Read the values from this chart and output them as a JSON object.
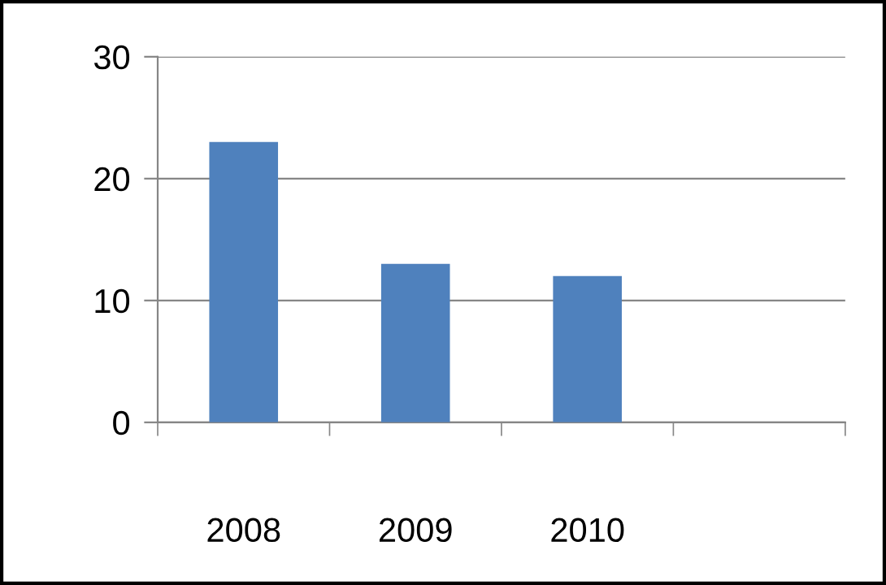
{
  "chart_data": {
    "type": "bar",
    "categories": [
      "2008",
      "2009",
      "2010",
      null
    ],
    "values": [
      23,
      13,
      12,
      null
    ],
    "color": "#4f81bd",
    "ylim": [
      0,
      30
    ],
    "yticks": [
      0,
      10,
      20,
      30
    ],
    "grid": "y"
  }
}
